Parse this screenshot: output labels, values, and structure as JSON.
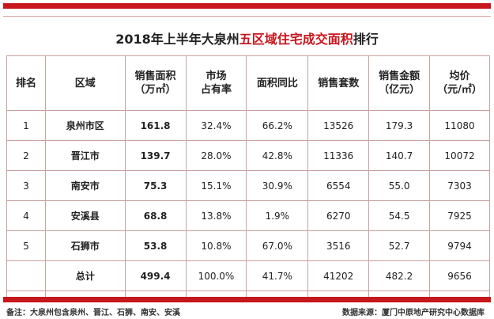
{
  "title": {
    "prefix": "2018年上半年大泉州",
    "highlight": "五区域住宅成交面积",
    "suffix": "排行"
  },
  "headers": [
    [
      "排名"
    ],
    [
      "区域"
    ],
    [
      "销售面积",
      "（万㎡）"
    ],
    [
      "市场",
      "占有率"
    ],
    [
      "面积同比"
    ],
    [
      "销售套数"
    ],
    [
      "销售金额",
      "（亿元）"
    ],
    [
      "均价",
      "（元/㎡）"
    ]
  ],
  "rows": [
    [
      "1",
      "泉州市区",
      "161.8",
      "32.4%",
      "66.2%",
      "13526",
      "179.3",
      "11080"
    ],
    [
      "2",
      "晋江市",
      "139.7",
      "28.0%",
      "42.8%",
      "11336",
      "140.7",
      "10072"
    ],
    [
      "3",
      "南安市",
      "75.3",
      "15.1%",
      "30.9%",
      "6554",
      "55.0",
      "7303"
    ],
    [
      "4",
      "安溪县",
      "68.8",
      "13.8%",
      "1.9%",
      "6270",
      "54.5",
      "7925"
    ],
    [
      "5",
      "石狮市",
      "53.8",
      "10.8%",
      "67.0%",
      "3516",
      "52.7",
      "9794"
    ],
    [
      "",
      "总计",
      "499.4",
      "100.0%",
      "41.7%",
      "41202",
      "482.2",
      "9656"
    ]
  ],
  "note": "备注：大泉州包含泉州、晋江、石狮、南安、安溪",
  "source": "数据来源：厦门中原地产研究中心数据库",
  "colors": {
    "accent": "#c8161d"
  }
}
